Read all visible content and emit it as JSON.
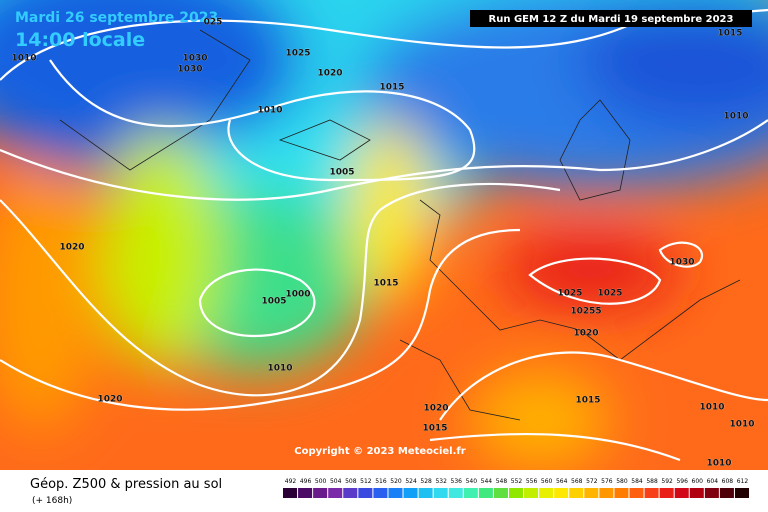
{
  "header": {
    "date": "Mardi 26 septembre 2023",
    "time": "14:00 locale",
    "run": "Run GEM 12 Z du Mardi 19 septembre 2023"
  },
  "copyright": "Copyright © 2023 Meteociel.fr",
  "isobar_labels": [
    "025",
    "1010",
    "1030",
    "1030",
    "1025",
    "1020",
    "1015",
    "1010",
    "1005",
    "1020",
    "1015",
    "1000",
    "1005",
    "1025",
    "1025",
    "10255",
    "1020",
    "1030",
    "1010",
    "1020",
    "1015",
    "1020",
    "1015",
    "1010",
    "1010",
    "1010",
    "1015",
    "1010"
  ],
  "legend": {
    "title": "Géop. Z500 & pression au sol",
    "lead": "(+ 168h)",
    "labels": [
      "492",
      "496",
      "500",
      "504",
      "508",
      "512",
      "516",
      "520",
      "524",
      "528",
      "532",
      "536",
      "540",
      "544",
      "548",
      "552",
      "556",
      "560",
      "564",
      "568",
      "572",
      "576",
      "580",
      "584",
      "588",
      "592",
      "596",
      "600",
      "604",
      "608",
      "612"
    ]
  }
}
